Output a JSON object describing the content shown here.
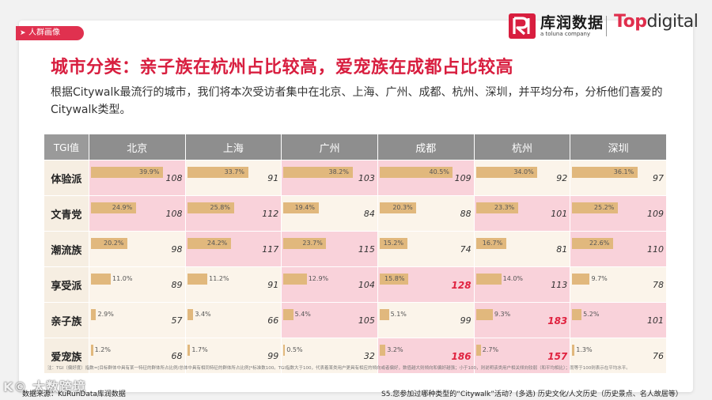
{
  "section_tag": "人群画像",
  "logos": {
    "kr_name": "库润数据",
    "kr_sub": "a toluna company",
    "td_top": "Top",
    "td_digital": "digital"
  },
  "title": "城市分类：亲子族在杭州占比较高，爱宠族在成都占比较高",
  "description": "根据Citywalk最流行的城市，我们将本次受访者集中在北京、上海、广州、成都、杭州、深圳，并平均分布，分析他们喜爱的Citywalk类型。",
  "colors": {
    "accent": "#d81e3f",
    "bar": "#e1b87d",
    "highlight": "#f9d2da",
    "tgi_high": "#e0223f"
  },
  "chart_data": {
    "type": "table",
    "corner_label": "TGI值",
    "cities": [
      "北京",
      "上海",
      "广州",
      "成都",
      "杭州",
      "深圳"
    ],
    "rows": [
      {
        "name": "体验派",
        "pct": [
          "39.9%",
          "33.7%",
          "38.2%",
          "40.5%",
          "34.0%",
          "36.1%"
        ],
        "values": [
          39.9,
          33.7,
          38.2,
          40.5,
          34.0,
          36.1
        ],
        "tgi": [
          108,
          91,
          103,
          109,
          92,
          97
        ],
        "hi": [
          true,
          false,
          true,
          true,
          false,
          false
        ]
      },
      {
        "name": "文青党",
        "pct": [
          "24.9%",
          "25.8%",
          "19.4%",
          "20.3%",
          "23.3%",
          "25.2%"
        ],
        "values": [
          24.9,
          25.8,
          19.4,
          20.3,
          23.3,
          25.2
        ],
        "tgi": [
          108,
          112,
          84,
          88,
          101,
          109
        ],
        "hi": [
          true,
          true,
          false,
          false,
          true,
          true
        ]
      },
      {
        "name": "潮流族",
        "pct": [
          "20.2%",
          "24.2%",
          "23.7%",
          "15.2%",
          "16.7%",
          "22.6%"
        ],
        "values": [
          20.2,
          24.2,
          23.7,
          15.2,
          16.7,
          22.6
        ],
        "tgi": [
          98,
          117,
          115,
          74,
          81,
          110
        ],
        "hi": [
          false,
          true,
          true,
          false,
          false,
          true
        ]
      },
      {
        "name": "享受派",
        "pct": [
          "11.0%",
          "11.2%",
          "12.9%",
          "15.8%",
          "14.0%",
          "9.7%"
        ],
        "values": [
          11.0,
          11.2,
          12.9,
          15.8,
          14.0,
          9.7
        ],
        "tgi": [
          89,
          91,
          104,
          128,
          113,
          78
        ],
        "hi": [
          false,
          false,
          true,
          true,
          true,
          false
        ]
      },
      {
        "name": "亲子族",
        "pct": [
          "2.9%",
          "3.4%",
          "5.4%",
          "5.1%",
          "9.3%",
          "5.2%"
        ],
        "values": [
          2.9,
          3.4,
          5.4,
          5.1,
          9.3,
          5.2
        ],
        "tgi": [
          57,
          66,
          105,
          99,
          183,
          101
        ],
        "hi": [
          false,
          false,
          true,
          false,
          true,
          true
        ]
      },
      {
        "name": "爱宠族",
        "pct": [
          "1.2%",
          "1.7%",
          "0.5%",
          "3.2%",
          "2.7%",
          "1.3%"
        ],
        "values": [
          1.2,
          1.7,
          0.5,
          3.2,
          2.7,
          1.3
        ],
        "tgi": [
          68,
          99,
          32,
          186,
          157,
          76
        ],
        "hi": [
          false,
          false,
          false,
          true,
          true,
          false
        ]
      }
    ],
    "emphasized_tgi": [
      128,
      183,
      186,
      157
    ]
  },
  "note": "注：TGI（偏好度）指数=[目标群体中具有某一特征的群体所占比例/总体中具有相同特征的群体所占比例]*标准数100。TGI指数大于100，代表着某类用户更具有相应的倾向或者偏好，数值越大则倾向和偏好越强；小于100，则说明该类用户相关倾向较弱（和平均相比）；而等于100则表示在平均水平。",
  "footer": {
    "source": "数据来源：KuRunData库润数据",
    "question": "S5.您参加过哪种类型的“Citywalk”活动？(多选) 历史文化/人文历史（历史景点、名人故居等）"
  },
  "watermark": "K© 大数跨境"
}
